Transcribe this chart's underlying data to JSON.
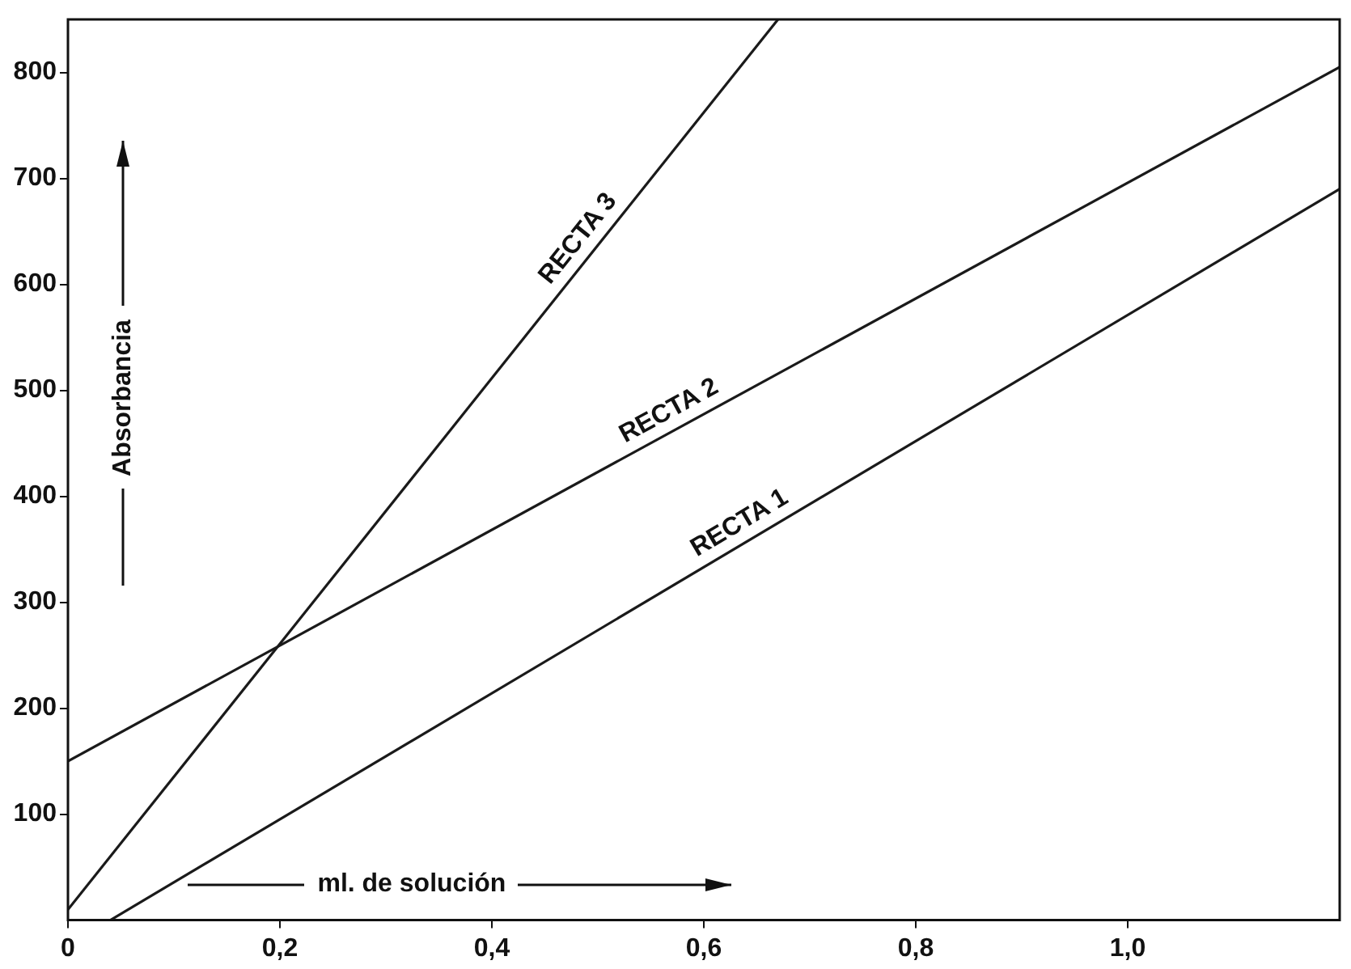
{
  "chart_data": {
    "type": "line",
    "xlabel": "ml. de solución",
    "ylabel": "Absorbancia",
    "xlim": [
      0,
      1.2
    ],
    "ylim": [
      0,
      850
    ],
    "xticks": [
      0,
      {
        "value": 0.2,
        "label": "0,2"
      },
      {
        "value": 0.4,
        "label": "0,4"
      },
      {
        "value": 0.6,
        "label": "0,6"
      },
      {
        "value": 0.8,
        "label": "0,8"
      },
      {
        "value": 1.0,
        "label": "1,0"
      }
    ],
    "yticks": [
      100,
      200,
      300,
      400,
      500,
      600,
      700,
      800
    ],
    "series": [
      {
        "name": "RECTA 1",
        "color": "#1a1a1a",
        "x": [
          0.04,
          1.2
        ],
        "values": [
          0,
          690
        ]
      },
      {
        "name": "RECTA 2",
        "color": "#1a1a1a",
        "x": [
          0,
          1.2
        ],
        "values": [
          150,
          805
        ]
      },
      {
        "name": "RECTA 3",
        "color": "#1a1a1a",
        "x": [
          0,
          0.67
        ],
        "values": [
          10,
          850
        ]
      }
    ],
    "grid": false,
    "legend": false,
    "marker": "none",
    "line_style": "solid"
  }
}
